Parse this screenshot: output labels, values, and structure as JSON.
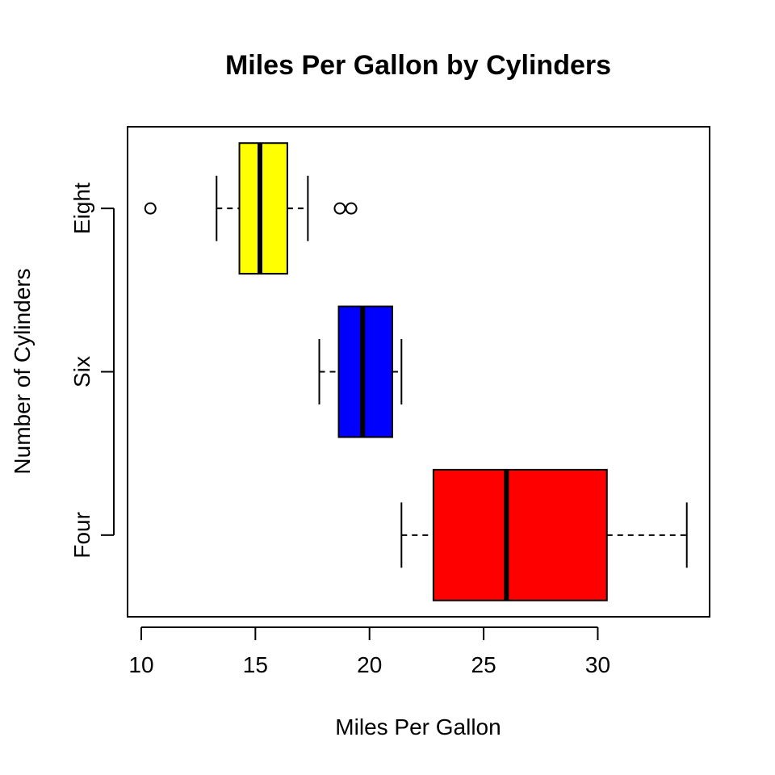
{
  "chart_data": {
    "type": "boxplot",
    "orientation": "horizontal",
    "title": "Miles Per Gallon by Cylinders",
    "xlabel": "Miles Per Gallon",
    "ylabel": "Number of Cylinders",
    "xlim": [
      9.4,
      34.9
    ],
    "xticks": [
      10,
      15,
      20,
      25,
      30
    ],
    "grid": false,
    "categories": [
      "Four",
      "Six",
      "Eight"
    ],
    "boxes": [
      {
        "name": "Four",
        "color": "#FF0000",
        "whisker_low": 21.4,
        "q1": 22.8,
        "median": 26.0,
        "q3": 30.4,
        "whisker_high": 33.9,
        "outliers": []
      },
      {
        "name": "Six",
        "color": "#0000FF",
        "whisker_low": 17.8,
        "q1": 18.65,
        "median": 19.7,
        "q3": 21.0,
        "whisker_high": 21.4,
        "outliers": []
      },
      {
        "name": "Eight",
        "color": "#FFFF00",
        "whisker_low": 13.3,
        "q1": 14.3,
        "median": 15.2,
        "q3": 16.4,
        "whisker_high": 17.3,
        "outliers": [
          10.4,
          18.7,
          19.2
        ]
      }
    ]
  }
}
